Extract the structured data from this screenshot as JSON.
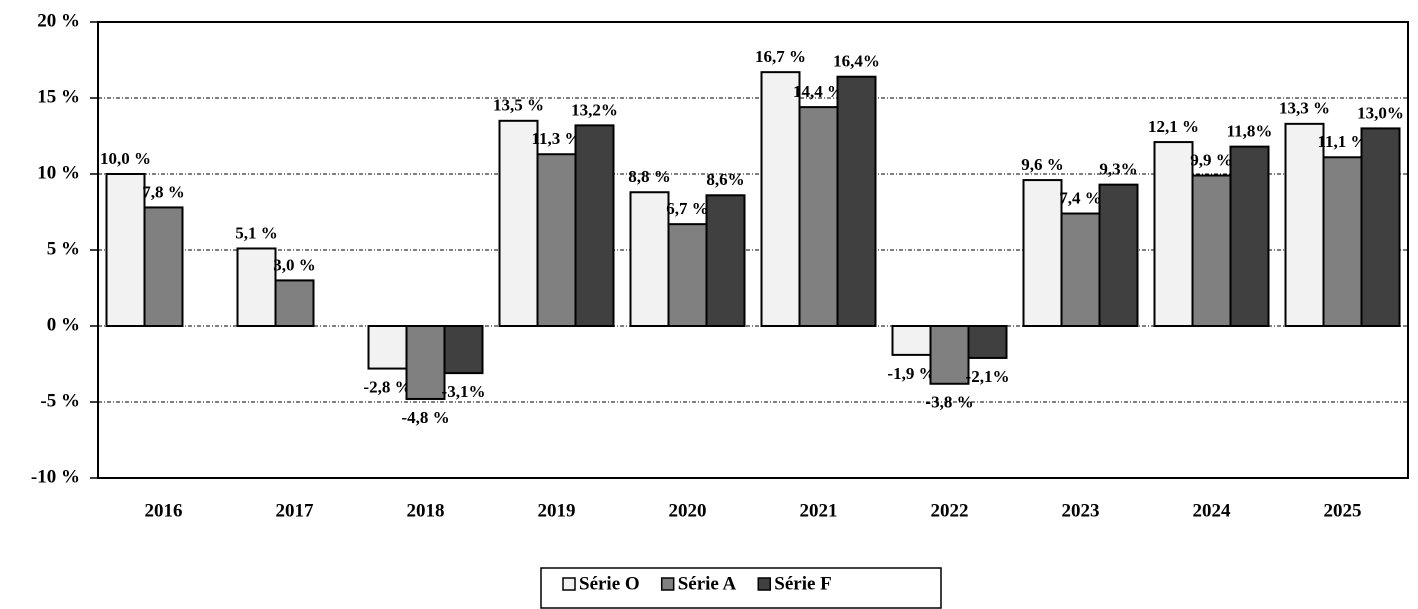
{
  "chart_data": {
    "type": "bar",
    "categories": [
      "2016",
      "2017",
      "2018",
      "2019",
      "2020",
      "2021",
      "2022",
      "2023",
      "2024",
      "2025"
    ],
    "series": [
      {
        "name": "Série O",
        "color": "#f2f2f2",
        "values": [
          10.0,
          5.1,
          -2.8,
          13.5,
          8.8,
          16.7,
          -1.9,
          9.6,
          12.1,
          13.3
        ],
        "value_labels": [
          "10,0 %",
          "5,1 %",
          "-2,8 %",
          "13,5 %",
          "8,8 %",
          "16,7 %",
          "-1,9 %",
          "9,6 %",
          "12,1 %",
          "13,3 %"
        ]
      },
      {
        "name": "Série A",
        "color": "#808080",
        "values": [
          7.8,
          3.0,
          -4.8,
          11.3,
          6.7,
          14.4,
          -3.8,
          7.4,
          9.9,
          11.1
        ],
        "value_labels": [
          "7,8 %",
          "3,0 %",
          "-4,8 %",
          "11,3 %",
          "6,7 %",
          "14,4 %",
          "-3,8 %",
          "7,4 %",
          "9,9 %",
          "11,1 %"
        ]
      },
      {
        "name": "Série F",
        "color": "#404040",
        "values": [
          null,
          null,
          -3.1,
          13.2,
          8.6,
          16.4,
          -2.1,
          9.3,
          11.8,
          13.0
        ],
        "value_labels": [
          null,
          null,
          "-3,1%",
          "13,2%",
          "8,6%",
          "16,4%",
          "-2,1%",
          "9,3%",
          "11,8%",
          "13,0%"
        ]
      }
    ],
    "ylim": [
      -10,
      20
    ],
    "yticks": [
      {
        "value": -10,
        "label": "-10 %"
      },
      {
        "value": -5,
        "label": "-5 %"
      },
      {
        "value": 0,
        "label": "0 %"
      },
      {
        "value": 5,
        "label": "5 %"
      },
      {
        "value": 10,
        "label": "10 %"
      },
      {
        "value": 15,
        "label": "15 %"
      },
      {
        "value": 20,
        "label": "20 %"
      }
    ],
    "grid": true,
    "legend": "bottom"
  }
}
